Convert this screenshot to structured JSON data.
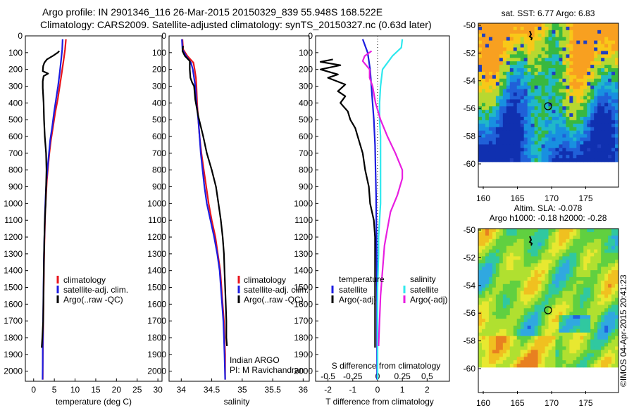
{
  "header": {
    "line1": "Argo profile: IN 2901346_116 26-Mar-2015 20150329_839 55.948S 168.522E",
    "line2": "Climatology: CARS2009. Satellite-adjusted climatology: synTS_20150327.nc (0.63d later)"
  },
  "colors": {
    "climatology": "#e8141c",
    "satellite": "#1c1ce0",
    "argo": "#000000",
    "sat_salinity": "#30e8ee",
    "argo_salinity": "#e81ee0"
  },
  "depth_ticks": [
    "0",
    "100",
    "200",
    "300",
    "400",
    "500",
    "600",
    "700",
    "800",
    "900",
    "1000",
    "1100",
    "1200",
    "1300",
    "1400",
    "1500",
    "1600",
    "1700",
    "1800",
    "1900",
    "2000"
  ],
  "chart_data": [
    {
      "type": "line",
      "name": "temperature",
      "xlabel": "temperature (deg C)",
      "ylabel": "",
      "xlim": [
        -2,
        31
      ],
      "ylim": [
        0,
        2060
      ],
      "xticks": [
        "0",
        "5",
        "10",
        "15",
        "20",
        "25",
        "30"
      ],
      "legend": [
        "climatology",
        "satellite-adj. clim.",
        "Argo(..raw -QC)"
      ],
      "series": [
        {
          "name": "climatology",
          "color_key": "climatology",
          "points": [
            [
              7.8,
              20
            ],
            [
              7.6,
              80
            ],
            [
              7.2,
              150
            ],
            [
              6.8,
              220
            ],
            [
              6.3,
              300
            ],
            [
              5.8,
              380
            ],
            [
              5.2,
              460
            ],
            [
              4.7,
              540
            ],
            [
              4.2,
              620
            ],
            [
              3.8,
              700
            ],
            [
              3.5,
              780
            ],
            [
              3.2,
              860
            ],
            [
              3.0,
              950
            ],
            [
              2.8,
              1050
            ],
            [
              2.7,
              1150
            ],
            [
              2.6,
              1250
            ],
            [
              2.5,
              1350
            ],
            [
              2.45,
              1450
            ],
            [
              2.4,
              1550
            ],
            [
              2.35,
              1650
            ],
            [
              2.3,
              1750
            ],
            [
              2.25,
              1850
            ],
            [
              2.2,
              1950
            ],
            [
              2.2,
              2050
            ]
          ]
        },
        {
          "name": "satellite-adj. clim.",
          "color_key": "satellite",
          "points": [
            [
              7.0,
              20
            ],
            [
              6.9,
              80
            ],
            [
              6.6,
              150
            ],
            [
              6.3,
              220
            ],
            [
              5.9,
              300
            ],
            [
              5.4,
              380
            ],
            [
              4.9,
              460
            ],
            [
              4.5,
              540
            ],
            [
              4.0,
              620
            ],
            [
              3.7,
              700
            ],
            [
              3.4,
              780
            ],
            [
              3.1,
              860
            ],
            [
              2.9,
              950
            ],
            [
              2.75,
              1050
            ],
            [
              2.65,
              1150
            ],
            [
              2.55,
              1250
            ],
            [
              2.45,
              1350
            ],
            [
              2.4,
              1450
            ],
            [
              2.35,
              1550
            ],
            [
              2.3,
              1650
            ],
            [
              2.25,
              1750
            ],
            [
              2.2,
              1850
            ],
            [
              2.2,
              1950
            ],
            [
              2.15,
              2050
            ]
          ]
        },
        {
          "name": "Argo(..raw -QC)",
          "color_key": "argo",
          "points": [
            [
              6.2,
              90
            ],
            [
              5.8,
              100
            ],
            [
              4.6,
              120
            ],
            [
              3.2,
              140
            ],
            [
              2.6,
              160
            ],
            [
              2.3,
              180
            ],
            [
              2.2,
              210
            ],
            [
              3.5,
              225
            ],
            [
              2.4,
              240
            ],
            [
              2.2,
              270
            ],
            [
              2.2,
              310
            ],
            [
              2.4,
              400
            ],
            [
              2.5,
              500
            ],
            [
              2.7,
              600
            ],
            [
              3.0,
              700
            ],
            [
              3.1,
              800
            ],
            [
              3.0,
              900
            ],
            [
              2.9,
              1000
            ],
            [
              2.7,
              1100
            ],
            [
              2.6,
              1200
            ],
            [
              2.5,
              1300
            ],
            [
              2.45,
              1400
            ],
            [
              2.4,
              1500
            ],
            [
              2.35,
              1600
            ],
            [
              2.3,
              1700
            ],
            [
              2.1,
              1800
            ],
            [
              1.95,
              1860
            ]
          ]
        }
      ]
    },
    {
      "type": "line",
      "name": "salinity",
      "xlabel": "salinity",
      "ylabel": "",
      "xlim": [
        33.8,
        36.1
      ],
      "ylim": [
        0,
        2060
      ],
      "xticks": [
        "34",
        "34.5",
        "35",
        "35.5",
        "36"
      ],
      "legend": [
        "climatology",
        "satellite-adj. clim.",
        "Argo(..raw -QC)"
      ],
      "annotation": [
        "Indian ARGO",
        "PI: M Ravichandran"
      ],
      "series": [
        {
          "name": "climatology",
          "color_key": "climatology",
          "points": [
            [
              34.02,
              20
            ],
            [
              34.03,
              80
            ],
            [
              34.1,
              120
            ],
            [
              34.2,
              160
            ],
            [
              34.22,
              200
            ],
            [
              34.24,
              250
            ],
            [
              34.25,
              300
            ],
            [
              34.26,
              400
            ],
            [
              34.28,
              500
            ],
            [
              34.3,
              600
            ],
            [
              34.33,
              700
            ],
            [
              34.37,
              800
            ],
            [
              34.41,
              900
            ],
            [
              34.45,
              1000
            ],
            [
              34.5,
              1100
            ],
            [
              34.56,
              1200
            ],
            [
              34.6,
              1300
            ],
            [
              34.64,
              1400
            ],
            [
              34.66,
              1500
            ],
            [
              34.68,
              1600
            ],
            [
              34.7,
              1700
            ],
            [
              34.71,
              1800
            ],
            [
              34.72,
              1900
            ],
            [
              34.72,
              2050
            ]
          ]
        },
        {
          "name": "satellite-adj. clim.",
          "color_key": "satellite",
          "points": [
            [
              34.01,
              20
            ],
            [
              34.02,
              80
            ],
            [
              34.08,
              120
            ],
            [
              34.16,
              160
            ],
            [
              34.19,
              200
            ],
            [
              34.21,
              250
            ],
            [
              34.23,
              300
            ],
            [
              34.25,
              400
            ],
            [
              34.28,
              500
            ],
            [
              34.3,
              600
            ],
            [
              34.32,
              700
            ],
            [
              34.35,
              800
            ],
            [
              34.38,
              900
            ],
            [
              34.42,
              1000
            ],
            [
              34.48,
              1100
            ],
            [
              34.54,
              1200
            ],
            [
              34.59,
              1300
            ],
            [
              34.63,
              1400
            ],
            [
              34.65,
              1500
            ],
            [
              34.67,
              1600
            ],
            [
              34.69,
              1700
            ],
            [
              34.7,
              1800
            ],
            [
              34.71,
              1900
            ],
            [
              34.72,
              2050
            ]
          ]
        },
        {
          "name": "Argo(..raw -QC)",
          "color_key": "argo",
          "points": [
            [
              34.03,
              60
            ],
            [
              34.02,
              90
            ],
            [
              34.06,
              120
            ],
            [
              34.14,
              150
            ],
            [
              34.14,
              200
            ],
            [
              34.15,
              250
            ],
            [
              34.18,
              280
            ],
            [
              34.21,
              300
            ],
            [
              34.23,
              380
            ],
            [
              34.28,
              480
            ],
            [
              34.36,
              600
            ],
            [
              34.42,
              700
            ],
            [
              34.5,
              800
            ],
            [
              34.57,
              900
            ],
            [
              34.61,
              1000
            ],
            [
              34.65,
              1100
            ],
            [
              34.68,
              1200
            ],
            [
              34.7,
              1300
            ],
            [
              34.71,
              1400
            ],
            [
              34.72,
              1500
            ],
            [
              34.73,
              1600
            ],
            [
              34.74,
              1700
            ],
            [
              34.74,
              1800
            ],
            [
              34.75,
              1850
            ]
          ]
        }
      ]
    },
    {
      "type": "line",
      "name": "difference from climatology",
      "xlabel": "T difference from climatology",
      "xlabel_top": "S difference from climatology",
      "ylabel": "",
      "xlim": [
        -2.5,
        2.9
      ],
      "s_xlim": [
        -0.625,
        0.725
      ],
      "ylim": [
        0,
        2060
      ],
      "xticks": [
        "-2",
        "-1",
        "0",
        "1",
        "2"
      ],
      "s_xticks": [
        "-0.5",
        "-0.25",
        "0",
        "0.25",
        "0.5"
      ],
      "legend_left_title": "temperature",
      "legend_right_title": "salinity",
      "legend": [
        "satellite",
        "Argo(-adj)",
        "satellite",
        "Argo(-adj)"
      ],
      "series": [
        {
          "name": "temperature satellite",
          "color_key": "satellite",
          "points": [
            [
              -0.6,
              20
            ],
            [
              -0.5,
              60
            ],
            [
              -0.4,
              100
            ],
            [
              -0.3,
              200
            ],
            [
              -0.25,
              300
            ],
            [
              -0.2,
              400
            ],
            [
              -0.15,
              500
            ],
            [
              -0.1,
              650
            ],
            [
              -0.08,
              800
            ],
            [
              -0.06,
              950
            ],
            [
              -0.05,
              1100
            ],
            [
              -0.04,
              1250
            ],
            [
              -0.03,
              1400
            ],
            [
              -0.02,
              1600
            ],
            [
              -0.02,
              1800
            ],
            [
              -0.02,
              2050
            ]
          ]
        },
        {
          "name": "temperature Argo(-adj)",
          "color_key": "argo",
          "points": [
            [
              -1.8,
              140
            ],
            [
              -2.3,
              155
            ],
            [
              -1.5,
              175
            ],
            [
              -2.3,
              200
            ],
            [
              -1.6,
              230
            ],
            [
              -2.0,
              250
            ],
            [
              -1.3,
              290
            ],
            [
              -1.6,
              330
            ],
            [
              -1.3,
              360
            ],
            [
              -1.5,
              400
            ],
            [
              -1.2,
              450
            ],
            [
              -1.1,
              500
            ],
            [
              -0.9,
              550
            ],
            [
              -0.8,
              600
            ],
            [
              -0.6,
              700
            ],
            [
              -0.5,
              800
            ],
            [
              -0.35,
              900
            ],
            [
              -0.3,
              1000
            ],
            [
              -0.15,
              1100
            ],
            [
              -0.1,
              1200
            ],
            [
              -0.1,
              1300
            ],
            [
              -0.1,
              1400
            ],
            [
              -0.1,
              1500
            ],
            [
              -0.1,
              1600
            ],
            [
              -0.1,
              1700
            ],
            [
              -0.1,
              1860
            ]
          ]
        },
        {
          "name": "salinity satellite",
          "color_key": "sat_salinity",
          "points": [
            [
              0.25,
              20
            ],
            [
              0.24,
              70
            ],
            [
              0.15,
              120
            ],
            [
              0.05,
              200
            ],
            [
              0.03,
              300
            ],
            [
              0.02,
              400
            ],
            [
              0.02,
              500
            ],
            [
              0.03,
              600
            ],
            [
              0.03,
              700
            ],
            [
              0.03,
              800
            ],
            [
              0.03,
              900
            ],
            [
              0.03,
              1000
            ],
            [
              0.02,
              1100
            ],
            [
              0.01,
              1200
            ],
            [
              0.01,
              1300
            ],
            [
              0.0,
              1500
            ],
            [
              0.0,
              1700
            ],
            [
              0.0,
              2050
            ]
          ]
        },
        {
          "name": "salinity Argo(-adj)",
          "color_key": "argo_salinity",
          "points": [
            [
              -0.06,
              90
            ],
            [
              -0.13,
              120
            ],
            [
              -0.15,
              150
            ],
            [
              -0.08,
              200
            ],
            [
              -0.08,
              250
            ],
            [
              -0.05,
              300
            ],
            [
              -0.02,
              400
            ],
            [
              0.03,
              500
            ],
            [
              0.1,
              600
            ],
            [
              0.18,
              700
            ],
            [
              0.25,
              800
            ],
            [
              0.25,
              850
            ],
            [
              0.2,
              950
            ],
            [
              0.13,
              1050
            ],
            [
              0.1,
              1150
            ],
            [
              0.07,
              1250
            ],
            [
              0.05,
              1400
            ],
            [
              0.03,
              1550
            ],
            [
              0.02,
              1700
            ],
            [
              0.01,
              1850
            ]
          ]
        }
      ]
    }
  ],
  "map_sst": {
    "title": "sat. SST: 6.77 Argo: 6.83",
    "xticks": [
      "160",
      "165",
      "170",
      "175"
    ],
    "yticks": [
      "-50",
      "-52",
      "-54",
      "-56",
      "-58",
      "-60"
    ]
  },
  "map_sla": {
    "title1": "Altim. SLA: -0.078",
    "title2": "Argo h1000: -0.18 h2000: -0.28",
    "xticks": [
      "160",
      "165",
      "170",
      "175"
    ],
    "yticks": [
      "-50",
      "-52",
      "-54",
      "-56",
      "-58",
      "-60"
    ]
  },
  "credit": "©IMOS 04-Apr-2015 20:41:23"
}
